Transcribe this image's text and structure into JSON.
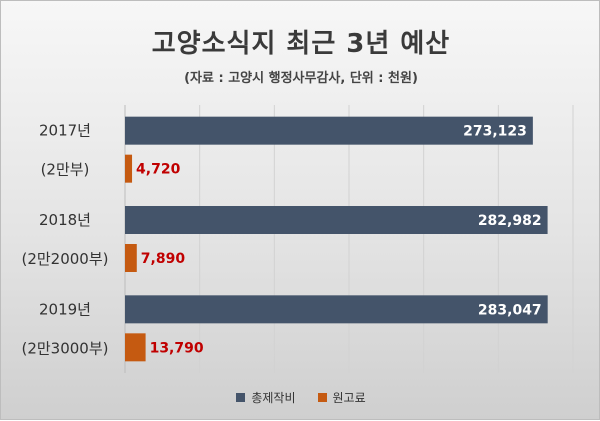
{
  "title": "고양소식지 최근 3년 예산",
  "subtitle": "(자료 : 고양시 행정사무감사, 단위 : 천원)",
  "chart_data": {
    "type": "bar",
    "orientation": "horizontal",
    "categories": [
      {
        "line1": "2017년",
        "line2": "(2만부)"
      },
      {
        "line1": "2018년",
        "line2": "(2만2000부)"
      },
      {
        "line1": "2019년",
        "line2": "(2만3000부)"
      }
    ],
    "series": [
      {
        "name": "총제작비",
        "color": "#44546a",
        "label_color": "#ffffff",
        "values": [
          273123,
          282982,
          283047
        ],
        "labels": [
          "273,123",
          "282,982",
          "283,047"
        ]
      },
      {
        "name": "원고료",
        "color": "#c55a11",
        "label_color": "#c00000",
        "values": [
          4720,
          7890,
          13790
        ],
        "labels": [
          "4,720",
          "7,890",
          "13,790"
        ]
      }
    ],
    "xlim": [
      0,
      300000
    ],
    "grid": true,
    "legend": "bottom"
  }
}
